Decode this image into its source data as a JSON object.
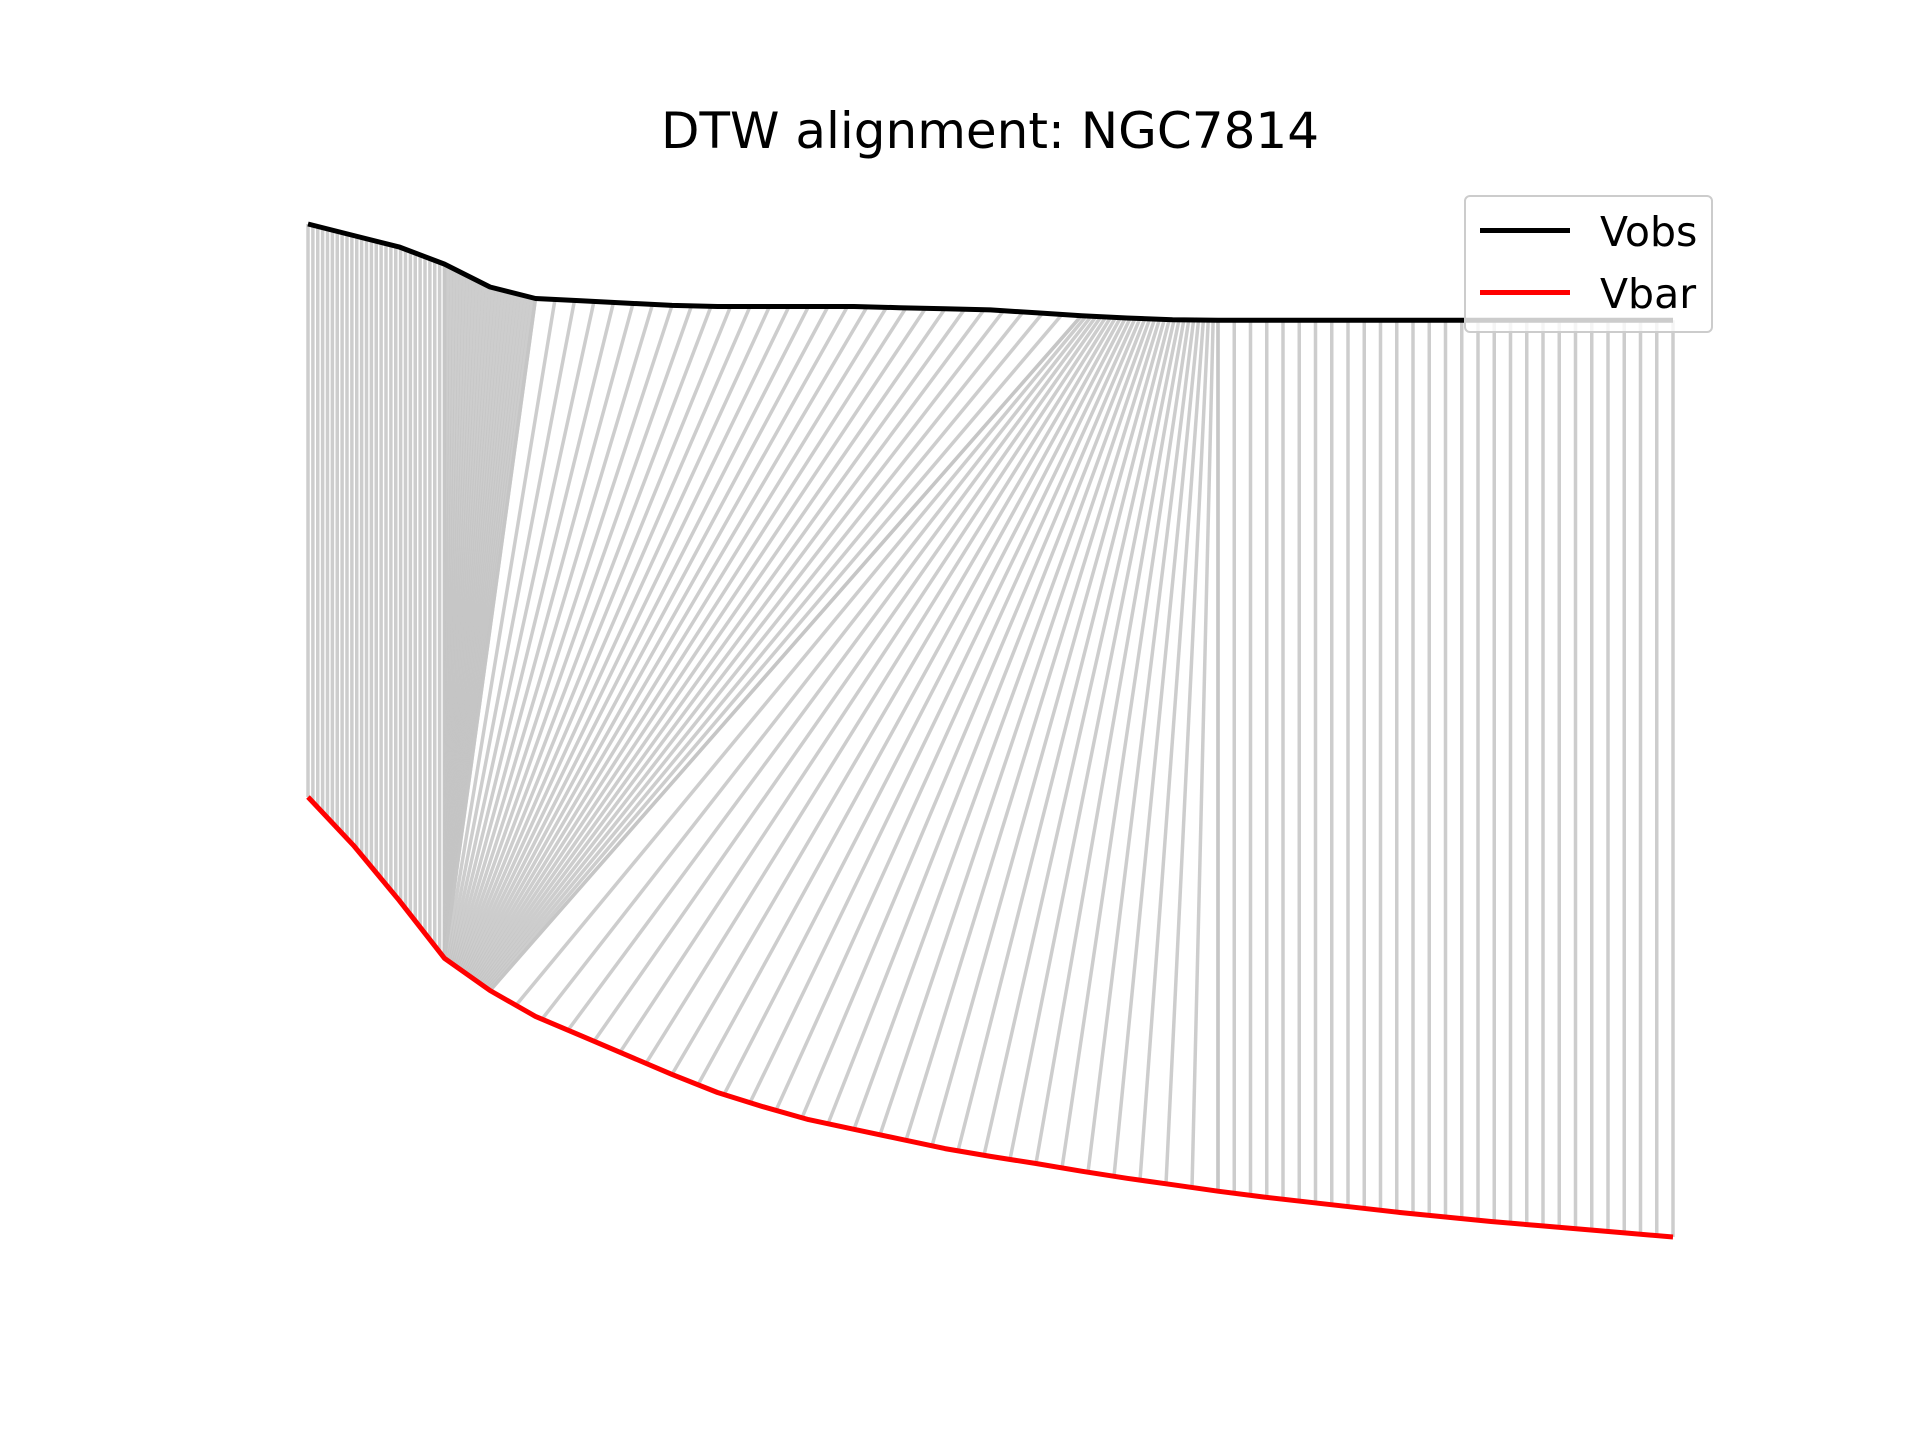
{
  "chart_data": {
    "type": "line",
    "title": "DTW alignment: NGC7814",
    "xlabel": "",
    "ylabel": "",
    "axes_visible": false,
    "grid": false,
    "legend_position": "top-right",
    "series": [
      {
        "name": "Vobs",
        "color": "#000000",
        "values": [
          1.0,
          0.98,
          0.96,
          0.93,
          0.89,
          0.87,
          0.866,
          0.862,
          0.858,
          0.856,
          0.856,
          0.856,
          0.856,
          0.854,
          0.852,
          0.85,
          0.845,
          0.84,
          0.836,
          0.833,
          0.832,
          0.832,
          0.832,
          0.832,
          0.832,
          0.832,
          0.832,
          0.832,
          0.832,
          0.832,
          0.832
        ]
      },
      {
        "name": "Vbar",
        "color": "#ff0000",
        "values": [
          0.0,
          -0.075,
          -0.16,
          -0.25,
          -0.3,
          -0.34,
          -0.37,
          -0.4,
          -0.43,
          -0.458,
          -0.48,
          -0.5,
          -0.515,
          -0.53,
          -0.545,
          -0.557,
          -0.568,
          -0.58,
          -0.591,
          -0.601,
          -0.611,
          -0.62,
          -0.628,
          -0.636,
          -0.644,
          -0.651,
          -0.658,
          -0.664,
          -0.67,
          -0.676,
          -0.682
        ]
      }
    ],
    "alignment_color": "#c4c4c4",
    "alignment_groups": [
      {
        "obs_range": [
          0,
          3
        ],
        "bar_range": [
          0,
          3
        ]
      },
      {
        "obs_range": [
          3,
          5
        ],
        "bar_range": [
          3,
          3
        ]
      },
      {
        "obs_range": [
          5,
          17
        ],
        "bar_range": [
          3,
          4
        ]
      },
      {
        "obs_range": [
          17,
          20
        ],
        "bar_range": [
          4,
          20
        ]
      },
      {
        "obs_range": [
          20,
          30
        ],
        "bar_range": [
          20,
          30
        ]
      }
    ]
  }
}
